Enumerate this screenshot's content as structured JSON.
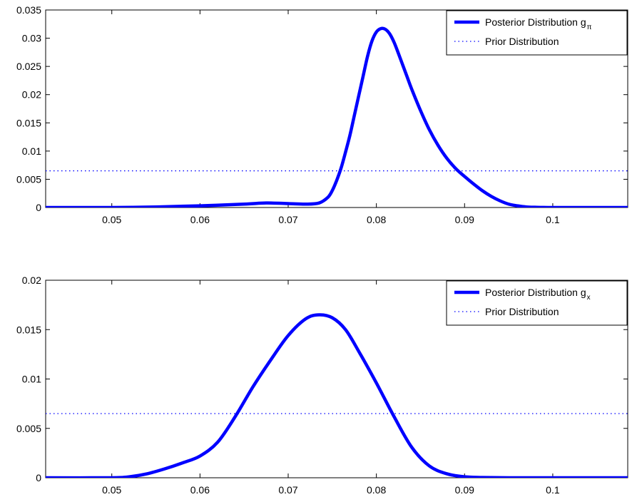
{
  "chart_data": [
    {
      "type": "line",
      "title": "",
      "xlabel": "",
      "ylabel": "",
      "xlim": [
        0.0425,
        0.1085
      ],
      "ylim": [
        0,
        0.035
      ],
      "xticks": [
        0.05,
        0.06,
        0.07,
        0.08,
        0.09,
        0.1
      ],
      "xtick_labels": [
        "0.05",
        "0.06",
        "0.07",
        "0.08",
        "0.09",
        "0.1"
      ],
      "yticks": [
        0,
        0.005,
        0.01,
        0.015,
        0.02,
        0.025,
        0.03,
        0.035
      ],
      "ytick_labels": [
        "0",
        "0.005",
        "0.01",
        "0.015",
        "0.02",
        "0.025",
        "0.03",
        "0.035"
      ],
      "legend_position": "top-right",
      "grid": false,
      "series": [
        {
          "name": "Posterior Distribution g",
          "name_subscript": "π",
          "style": "solid-thick",
          "color": "#0000ff",
          "x": [
            0.0425,
            0.05,
            0.055,
            0.06,
            0.065,
            0.0675,
            0.07,
            0.072,
            0.0735,
            0.0745,
            0.075,
            0.0755,
            0.076,
            0.0765,
            0.077,
            0.0775,
            0.078,
            0.0785,
            0.079,
            0.0795,
            0.08,
            0.0805,
            0.081,
            0.0815,
            0.082,
            0.0825,
            0.083,
            0.0835,
            0.084,
            0.085,
            0.086,
            0.087,
            0.088,
            0.089,
            0.09,
            0.091,
            0.092,
            0.093,
            0.094,
            0.095,
            0.096,
            0.097,
            0.098,
            0.1,
            0.105,
            0.1085
          ],
          "y": [
            0,
            0,
            0.0001,
            0.0003,
            0.0006,
            0.0008,
            0.0007,
            0.0006,
            0.0008,
            0.0018,
            0.003,
            0.0048,
            0.007,
            0.0098,
            0.0128,
            0.0163,
            0.0198,
            0.0233,
            0.0268,
            0.0295,
            0.0311,
            0.0317,
            0.0316,
            0.0308,
            0.0293,
            0.0273,
            0.0252,
            0.0231,
            0.021,
            0.0172,
            0.0138,
            0.011,
            0.0087,
            0.0069,
            0.0055,
            0.0042,
            0.003,
            0.002,
            0.0012,
            0.0006,
            0.0003,
            0.0001,
            4e-05,
            0,
            0,
            0
          ]
        },
        {
          "name": "Prior Distribution",
          "style": "dotted",
          "color": "#0000ff",
          "x": [
            0.0425,
            0.1085
          ],
          "y": [
            0.0065,
            0.0065
          ]
        }
      ]
    },
    {
      "type": "line",
      "title": "",
      "xlabel": "",
      "ylabel": "",
      "xlim": [
        0.0425,
        0.1085
      ],
      "ylim": [
        0,
        0.02
      ],
      "xticks": [
        0.05,
        0.06,
        0.07,
        0.08,
        0.09,
        0.1
      ],
      "xtick_labels": [
        "0.05",
        "0.06",
        "0.07",
        "0.08",
        "0.09",
        "0.1"
      ],
      "yticks": [
        0,
        0.005,
        0.01,
        0.015,
        0.02
      ],
      "ytick_labels": [
        "0",
        "0.005",
        "0.01",
        "0.015",
        "0.02"
      ],
      "legend_position": "top-right",
      "grid": false,
      "series": [
        {
          "name": "Posterior Distribution g",
          "name_subscript": "x",
          "style": "solid-thick",
          "color": "#0000ff",
          "x": [
            0.0425,
            0.05,
            0.052,
            0.054,
            0.056,
            0.058,
            0.06,
            0.062,
            0.064,
            0.066,
            0.068,
            0.07,
            0.072,
            0.0735,
            0.075,
            0.0765,
            0.078,
            0.08,
            0.082,
            0.084,
            0.086,
            0.088,
            0.09,
            0.092,
            0.095,
            0.1,
            0.1085
          ],
          "y": [
            0,
            0,
            0.0001,
            0.0004,
            0.0009,
            0.0015,
            0.0022,
            0.0036,
            0.0062,
            0.0092,
            0.0119,
            0.0144,
            0.0161,
            0.0165,
            0.0162,
            0.015,
            0.0128,
            0.0096,
            0.0062,
            0.0031,
            0.0012,
            0.0004,
            0.0001,
            3e-05,
            0,
            0,
            0
          ]
        },
        {
          "name": "Prior Distribution",
          "style": "dotted",
          "color": "#0000ff",
          "x": [
            0.0425,
            0.1085
          ],
          "y": [
            0.0065,
            0.0065
          ]
        }
      ]
    }
  ]
}
